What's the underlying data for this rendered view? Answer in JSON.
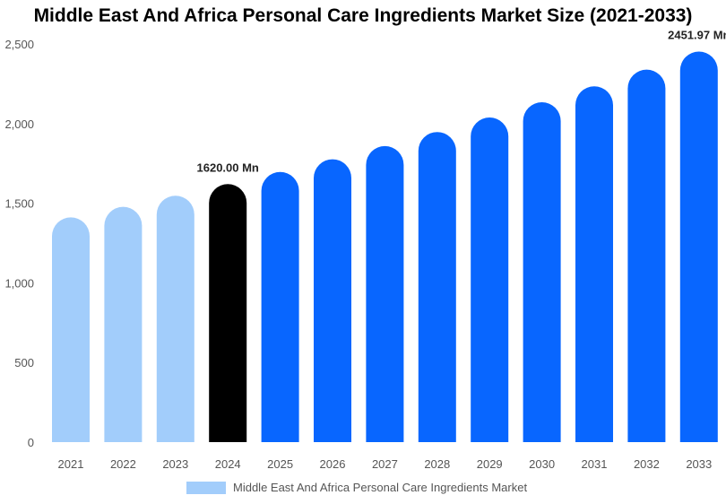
{
  "chart_data": {
    "type": "bar",
    "title": "Middle East And Africa Personal Care Ingredients Market Size (2021-2033)",
    "categories": [
      "2021",
      "2022",
      "2023",
      "2024",
      "2025",
      "2026",
      "2027",
      "2028",
      "2029",
      "2030",
      "2031",
      "2032",
      "2033"
    ],
    "series": [
      {
        "name": "Middle East And Africa Personal Care Ingredients Market",
        "values": [
          1411,
          1477,
          1547,
          1620,
          1696,
          1776,
          1859,
          1947,
          2038,
          2134,
          2234,
          2339,
          2451.97
        ]
      }
    ],
    "ylim": [
      0,
      2500
    ],
    "yticks": [
      "0",
      "500",
      "1,000",
      "1,500",
      "2,000",
      "2,500"
    ],
    "data_labels": {
      "3": "1620.00 Mn",
      "12": "2451.97 Mn"
    },
    "grid": false,
    "legend_position": "bottom",
    "colors": {
      "historical": "#a2cdfb",
      "current": "#000000",
      "forecast": "#0866ff"
    }
  }
}
